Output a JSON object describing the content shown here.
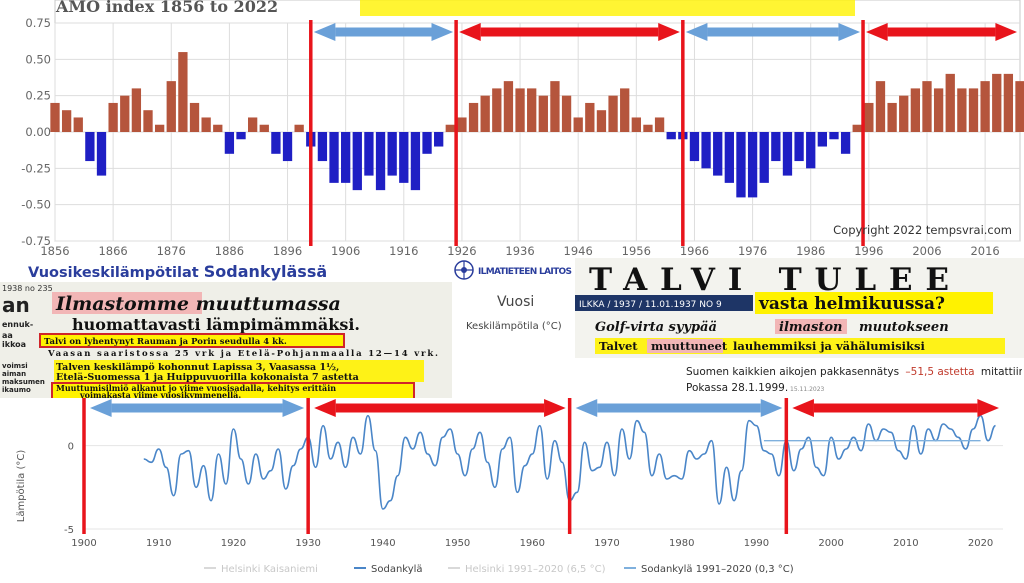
{
  "amo_panel": {
    "title": "AMO index 1856 to 2022",
    "copyright": "Copyright 2022 tempsvrai.com",
    "colors": {
      "positive": "#b5553c",
      "negative": "#1f1fc4",
      "red_arrow": "#e8141b",
      "blue_arrow": "#6aa0d8",
      "red_line": "#e8141b",
      "highlight": "#fff200"
    }
  },
  "sodankyla_header": {
    "title_prefix": "Vuosikeskilämpötilat",
    "title_place": "Sodankylässä",
    "fmi_label": "ILMATIETEEN LAITOS",
    "vuosi_label": "Vuosi",
    "keskilampotila_label": "Keskilämpötila (°C)"
  },
  "clip_1938": {
    "corner": "1938 no 235",
    "headline1": "Ilmastomme muuttumassa",
    "headline2": "huomattavasti lämpimämmäksi.",
    "box1": "Talvi on lyhentynyt Rauman ja Porin seudulla 4 kk.",
    "line2": "Vaasan saaristossa 25 vrk ja Etelä-Pohjanmaalla 12—14 vrk.",
    "line3": "Talven keskilämpö kohonnut Lapissa 3, Vaasassa 1½,",
    "line4": "Etelä-Suomessa 1 ja Huippuvuorilla kokonaista 7 astetta",
    "box2a": "Muuttumisilmiö alkanut jo viime vuosisadalla, kehitys erittäin",
    "box2b": "voimakasta viime vuosikymmenellä.",
    "side_words": [
      "an",
      "ennuk-",
      "aa",
      "ikkoa",
      "voimsi",
      "aiman",
      "maksumen",
      "ikaumo"
    ]
  },
  "clip_1937": {
    "headline": "TALVI TULEE",
    "source": "ILKKA  /  1937  /  11.01.1937 NO 9",
    "subhead": "vasta helmikuussa?",
    "line2a": "Golf-virta syypää",
    "line2b": "ilmaston",
    "line2c": "muutokseen",
    "line3a": "Talvet",
    "line3b": "muuttuneet",
    "line3c": "lauhemmiksi ja vähälumisiksi"
  },
  "kittila_note": {
    "text_a": "Suomen kaikkien aikojen pakkasennätys",
    "text_b": "–51,5 astetta",
    "text_c": "mitattiin Kittilän",
    "text_d": "Pokassa 28.1.1999.",
    "date": "15.11.2023"
  },
  "legend": {
    "items": [
      "Helsinki Kaisaniemi",
      "Sodankylä",
      "Helsinki 1991–2020 (6,5 °C)",
      "Sodankylä 1991–2020 (0,3 °C)"
    ]
  },
  "chart_data": [
    {
      "type": "bar",
      "title": "AMO index 1856 to 2022",
      "xlim": [
        1856,
        2022
      ],
      "ylim": [
        -0.75,
        0.75
      ],
      "x_ticks": [
        1856,
        1866,
        1876,
        1886,
        1896,
        1906,
        1916,
        1926,
        1936,
        1946,
        1956,
        1966,
        1976,
        1986,
        1996,
        2006,
        2016
      ],
      "y_ticks": [
        0.75,
        0.5,
        0.25,
        0.0,
        -0.25,
        -0.5,
        -0.75
      ],
      "y_tick_labels": [
        "0.75",
        "0.50",
        "0.25",
        "0.00",
        "-0.25",
        "-0.50",
        "-0.75"
      ],
      "series": [
        {
          "name": "AMO index",
          "x": [
            1856,
            1858,
            1860,
            1862,
            1864,
            1866,
            1868,
            1870,
            1872,
            1874,
            1876,
            1878,
            1880,
            1882,
            1884,
            1886,
            1888,
            1890,
            1892,
            1894,
            1896,
            1898,
            1900,
            1902,
            1904,
            1906,
            1908,
            1910,
            1912,
            1914,
            1916,
            1918,
            1920,
            1922,
            1924,
            1926,
            1928,
            1930,
            1932,
            1934,
            1936,
            1938,
            1940,
            1942,
            1944,
            1946,
            1948,
            1950,
            1952,
            1954,
            1956,
            1958,
            1960,
            1962,
            1964,
            1966,
            1968,
            1970,
            1972,
            1974,
            1976,
            1978,
            1980,
            1982,
            1984,
            1986,
            1988,
            1990,
            1992,
            1994,
            1996,
            1998,
            2000,
            2002,
            2004,
            2006,
            2008,
            2010,
            2012,
            2014,
            2016,
            2018,
            2020,
            2022
          ],
          "values": [
            0.2,
            0.15,
            0.1,
            -0.2,
            -0.3,
            0.2,
            0.25,
            0.3,
            0.15,
            0.05,
            0.35,
            0.55,
            0.2,
            0.1,
            0.05,
            -0.15,
            -0.05,
            0.1,
            0.05,
            -0.15,
            -0.2,
            0.05,
            -0.1,
            -0.2,
            -0.35,
            -0.35,
            -0.4,
            -0.3,
            -0.4,
            -0.3,
            -0.35,
            -0.4,
            -0.15,
            -0.1,
            0.05,
            0.1,
            0.2,
            0.25,
            0.3,
            0.35,
            0.3,
            0.3,
            0.25,
            0.35,
            0.25,
            0.1,
            0.2,
            0.15,
            0.25,
            0.3,
            0.1,
            0.05,
            0.1,
            -0.05,
            -0.05,
            -0.2,
            -0.25,
            -0.3,
            -0.35,
            -0.45,
            -0.45,
            -0.35,
            -0.2,
            -0.3,
            -0.2,
            -0.25,
            -0.1,
            -0.05,
            -0.15,
            0.05,
            0.2,
            0.35,
            0.2,
            0.25,
            0.3,
            0.35,
            0.3,
            0.4,
            0.3,
            0.3,
            0.35,
            0.4,
            0.4,
            0.35
          ]
        }
      ],
      "annotations": {
        "red_lines_x": [
          1900,
          1925,
          1964,
          1995
        ],
        "blue_arrows": [
          [
            1900,
            1925
          ],
          [
            1964,
            1995
          ]
        ],
        "red_arrows": [
          [
            1925,
            1964
          ],
          [
            1995,
            2022
          ]
        ]
      }
    },
    {
      "type": "line",
      "xlabel": "Vuosi",
      "ylabel": "Lämpötila (°C)",
      "xlim": [
        1900,
        2023
      ],
      "ylim": [
        -5,
        2.5
      ],
      "x_ticks": [
        1900,
        1910,
        1920,
        1930,
        1940,
        1950,
        1960,
        1970,
        1980,
        1990,
        2000,
        2010,
        2020
      ],
      "y_ticks": [
        0,
        -5
      ],
      "series": [
        {
          "name": "Sodankylä",
          "x": [
            1908,
            1909,
            1910,
            1911,
            1912,
            1913,
            1914,
            1915,
            1916,
            1917,
            1918,
            1919,
            1920,
            1921,
            1922,
            1923,
            1924,
            1925,
            1926,
            1927,
            1928,
            1929,
            1930,
            1931,
            1932,
            1933,
            1934,
            1935,
            1936,
            1937,
            1938,
            1939,
            1940,
            1941,
            1942,
            1943,
            1944,
            1945,
            1946,
            1947,
            1948,
            1949,
            1950,
            1951,
            1952,
            1953,
            1954,
            1955,
            1956,
            1957,
            1958,
            1959,
            1960,
            1961,
            1962,
            1963,
            1964,
            1965,
            1966,
            1967,
            1968,
            1969,
            1970,
            1971,
            1972,
            1973,
            1974,
            1975,
            1976,
            1977,
            1978,
            1979,
            1980,
            1981,
            1982,
            1983,
            1984,
            1985,
            1986,
            1987,
            1988,
            1989,
            1990,
            1991,
            1992,
            1993,
            1994,
            1995,
            1996,
            1997,
            1998,
            1999,
            2000,
            2001,
            2002,
            2003,
            2004,
            2005,
            2006,
            2007,
            2008,
            2009,
            2010,
            2011,
            2012,
            2013,
            2014,
            2015,
            2016,
            2017,
            2018,
            2019,
            2020,
            2021,
            2022
          ],
          "values": [
            -0.8,
            -1.0,
            -0.2,
            -1.3,
            -3.0,
            -0.5,
            -0.3,
            -2.5,
            -1.2,
            -3.3,
            -0.5,
            -2.3,
            1.0,
            -0.8,
            -2.3,
            -0.5,
            -2.0,
            -1.5,
            -0.2,
            -2.6,
            -1.2,
            -0.2,
            0.5,
            -1.3,
            1.2,
            -0.8,
            0.2,
            -1.3,
            0.5,
            -0.5,
            1.8,
            -0.3,
            -3.8,
            -3.3,
            -1.8,
            0.5,
            -0.2,
            0.8,
            -0.5,
            -1.2,
            0.5,
            1.0,
            -0.5,
            -1.8,
            -0.2,
            0.8,
            -1.0,
            -2.5,
            -0.2,
            0.5,
            -2.8,
            -1.2,
            -0.5,
            1.2,
            -2.0,
            0.3,
            -1.0,
            -3.3,
            -2.8,
            0.2,
            -1.5,
            -1.3,
            0.2,
            -1.8,
            1.0,
            -0.8,
            1.5,
            0.8,
            -1.8,
            -0.5,
            -2.0,
            -1.8,
            -2.0,
            -0.3,
            -0.8,
            -0.5,
            0.3,
            -3.5,
            -1.3,
            -3.3,
            -1.5,
            1.5,
            1.2,
            -0.3,
            -0.5,
            -1.8,
            0.3,
            -1.5,
            -0.2,
            0.5,
            -1.3,
            -1.8,
            0.5,
            -0.8,
            -0.2,
            0.5,
            -0.3,
            1.3,
            0.3,
            1.0,
            0.8,
            -0.3,
            -0.8,
            1.2,
            -0.5,
            1.0,
            0.3,
            1.3,
            1.0,
            0.5,
            -0.2,
            1.0,
            1.8,
            0.3,
            1.2
          ]
        },
        {
          "name": "Sodankylä 1991–2020 (0,3 °C)",
          "x": [
            1991,
            2020
          ],
          "values": [
            0.3,
            0.3
          ]
        }
      ],
      "annotations": {
        "red_lines_x": [
          1900,
          1930,
          1965,
          1994
        ],
        "blue_arrows": [
          [
            1900,
            1930
          ],
          [
            1965,
            1994
          ]
        ],
        "red_arrows": [
          [
            1930,
            1965
          ],
          [
            1994,
            2023
          ]
        ]
      }
    }
  ]
}
